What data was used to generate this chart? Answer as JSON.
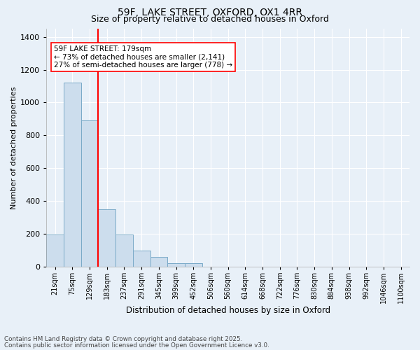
{
  "title1": "59F, LAKE STREET, OXFORD, OX1 4RR",
  "title2": "Size of property relative to detached houses in Oxford",
  "xlabel": "Distribution of detached houses by size in Oxford",
  "ylabel": "Number of detached properties",
  "categories": [
    "21sqm",
    "75sqm",
    "129sqm",
    "183sqm",
    "237sqm",
    "291sqm",
    "345sqm",
    "399sqm",
    "452sqm",
    "506sqm",
    "560sqm",
    "614sqm",
    "668sqm",
    "722sqm",
    "776sqm",
    "830sqm",
    "884sqm",
    "938sqm",
    "992sqm",
    "1046sqm",
    "1100sqm"
  ],
  "values": [
    195,
    1120,
    890,
    350,
    195,
    95,
    60,
    20,
    20,
    0,
    0,
    0,
    0,
    0,
    0,
    0,
    0,
    0,
    0,
    0,
    0
  ],
  "bar_color": "#ccdded",
  "bar_edge_color": "#7aaac8",
  "vline_x": 2.5,
  "vline_color": "red",
  "annotation_text": "59F LAKE STREET: 179sqm\n← 73% of detached houses are smaller (2,141)\n27% of semi-detached houses are larger (778) →",
  "annotation_box_color": "white",
  "annotation_box_edge_color": "red",
  "ylim": [
    0,
    1450
  ],
  "yticks": [
    0,
    200,
    400,
    600,
    800,
    1000,
    1200,
    1400
  ],
  "background_color": "#e8f0f8",
  "grid_color": "white",
  "footer1": "Contains HM Land Registry data © Crown copyright and database right 2025.",
  "footer2": "Contains public sector information licensed under the Open Government Licence v3.0.",
  "figsize": [
    6.0,
    5.0
  ],
  "dpi": 100
}
